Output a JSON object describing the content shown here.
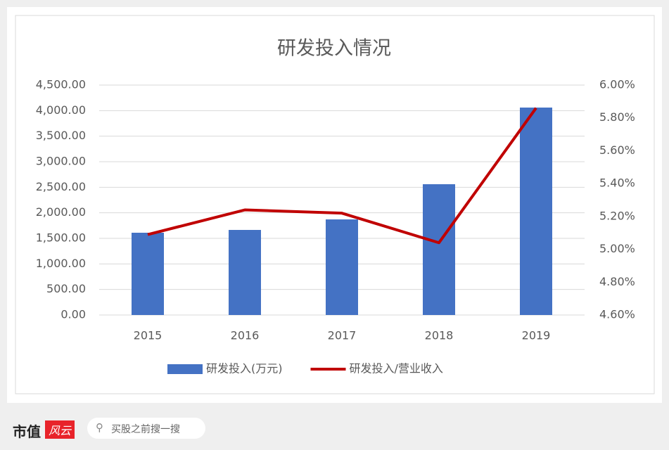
{
  "chart_data": {
    "type": "bar-line",
    "title": "研发投入情况",
    "categories": [
      "2015",
      "2016",
      "2017",
      "2018",
      "2019"
    ],
    "series": [
      {
        "name": "研发投入(万元)",
        "type": "bar",
        "color": "#4472c4",
        "values": [
          1610,
          1665,
          1871,
          2560,
          4060
        ]
      },
      {
        "name": "研发投入/营业收入",
        "type": "line",
        "axis": "y2",
        "color": "#c00000",
        "values": [
          5.09,
          5.24,
          5.22,
          5.04,
          5.86
        ]
      }
    ],
    "ylim": [
      0,
      4500
    ],
    "yticks": [
      {
        "value": 0,
        "label": "0.00"
      },
      {
        "value": 500,
        "label": "500.00"
      },
      {
        "value": 1000,
        "label": "1,000.00"
      },
      {
        "value": 1500,
        "label": "1,500.00"
      },
      {
        "value": 2000,
        "label": "2,000.00"
      },
      {
        "value": 2500,
        "label": "2,500.00"
      },
      {
        "value": 3000,
        "label": "3,000.00"
      },
      {
        "value": 3500,
        "label": "3,500.00"
      },
      {
        "value": 4000,
        "label": "4,000.00"
      },
      {
        "value": 4500,
        "label": "4,500.00"
      }
    ],
    "y2lim": [
      4.6,
      6.0
    ],
    "y2ticks": [
      {
        "value": 4.6,
        "label": "4.60%"
      },
      {
        "value": 4.8,
        "label": "4.80%"
      },
      {
        "value": 5.0,
        "label": "5.00%"
      },
      {
        "value": 5.2,
        "label": "5.20%"
      },
      {
        "value": 5.4,
        "label": "5.40%"
      },
      {
        "value": 5.6,
        "label": "5.60%"
      },
      {
        "value": 5.8,
        "label": "5.80%"
      },
      {
        "value": 6.0,
        "label": "6.00%"
      }
    ],
    "grid": true,
    "legend": "bottom"
  },
  "footer": {
    "brand": "市值",
    "logo": "风云",
    "search": "买股之前搜一搜"
  }
}
